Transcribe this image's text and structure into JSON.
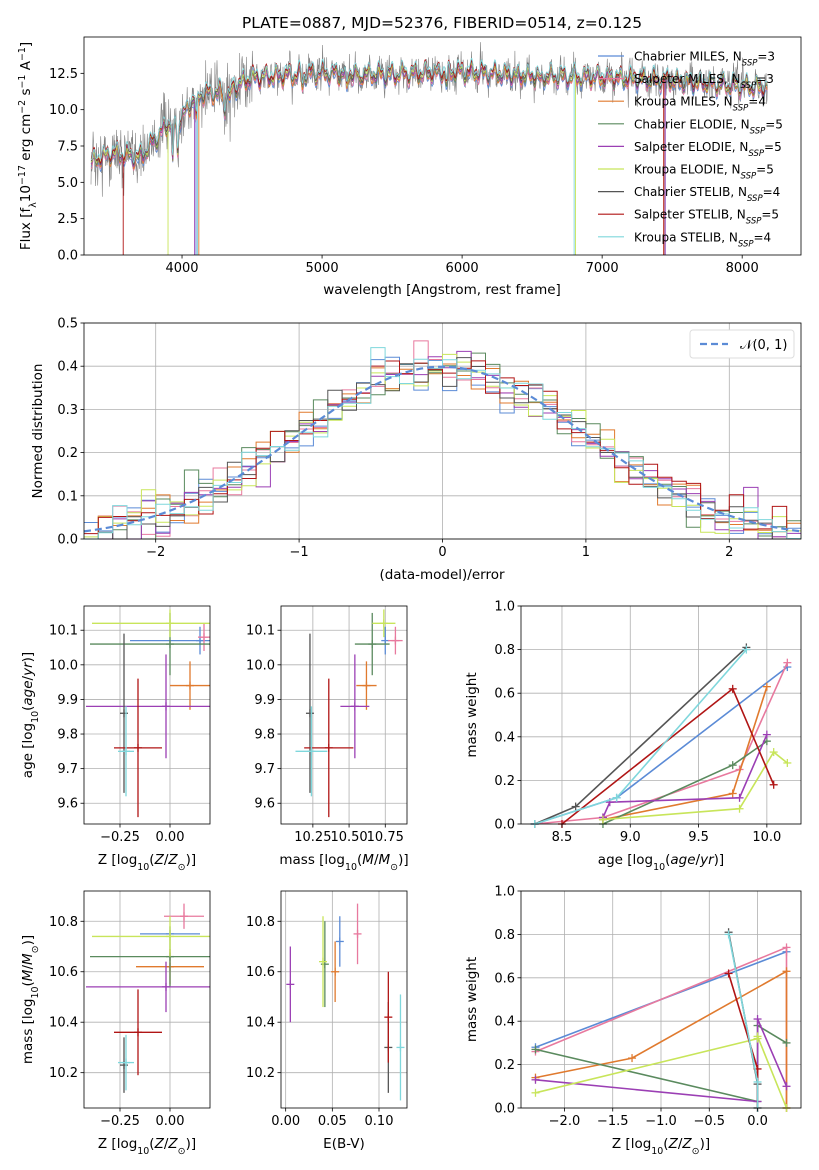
{
  "colors": {
    "Chabrier MILES": "#5b8bd6",
    "Salpeter MILES": "#e8799e",
    "Kroupa MILES": "#e07a2e",
    "Chabrier ELODIE": "#5a8a5e",
    "Salpeter ELODIE": "#9b3fb4",
    "Kroupa ELODIE": "#c8e55a",
    "Chabrier STELIB": "#555555",
    "Salpeter STELIB": "#b01515",
    "Kroupa STELIB": "#7fd7dc",
    "data": "#808080",
    "normal": "#5b8bd6"
  },
  "chart_data": [
    {
      "type": "line",
      "title": "PLATE=0887, MJD=52376, FIBERID=0514, z=0.125",
      "xlabel": "wavelength [Angstrom, rest frame]",
      "ylabel": "Flux [fλ10⁻¹⁷ erg cm⁻² s⁻¹ A⁻¹]",
      "xlim": [
        3300,
        8420
      ],
      "ylim": [
        0,
        15
      ],
      "xticks": [
        "4000",
        "5000",
        "6000",
        "7000",
        "8000"
      ],
      "yticks": [
        "0.0",
        "2.5",
        "5.0",
        "7.5",
        "10.0",
        "12.5"
      ],
      "legend_position": "right",
      "x_range_data": [
        3350,
        8180
      ],
      "series": [
        {
          "name": "Chabrier MILES, N_SSP=3"
        },
        {
          "name": "Salpeter MILES, N_SSP=3"
        },
        {
          "name": "Kroupa MILES, N_SSP=4"
        },
        {
          "name": "Chabrier ELODIE, N_SSP=5"
        },
        {
          "name": "Salpeter ELODIE, N_SSP=5"
        },
        {
          "name": "Kroupa ELODIE, N_SSP=5"
        },
        {
          "name": "Chabrier STELIB, N_SSP=4"
        },
        {
          "name": "Salpeter STELIB, N_SSP=5"
        },
        {
          "name": "Kroupa STELIB, N_SSP=4"
        }
      ],
      "model_shape": [
        [
          3350,
          6.4
        ],
        [
          3500,
          7.0
        ],
        [
          3700,
          6.7
        ],
        [
          3900,
          9.0
        ],
        [
          4000,
          9.5
        ],
        [
          4100,
          11.0
        ],
        [
          4300,
          11.2
        ],
        [
          4500,
          12.2
        ],
        [
          5000,
          12.5
        ],
        [
          5500,
          12.4
        ],
        [
          6000,
          12.6
        ],
        [
          6500,
          12.3
        ],
        [
          7000,
          12.2
        ],
        [
          7500,
          12.0
        ],
        [
          8000,
          11.6
        ],
        [
          8180,
          11.5
        ]
      ]
    },
    {
      "type": "histogram",
      "xlabel": "(data-model)/error",
      "ylabel": "Normed distribution",
      "xlim": [
        -2.5,
        2.5
      ],
      "ylim": [
        0,
        0.5
      ],
      "xticks": [
        "−2",
        "−1",
        "0",
        "1",
        "2"
      ],
      "yticks": [
        "0.0",
        "0.1",
        "0.2",
        "0.3",
        "0.4",
        "0.5"
      ],
      "bin_width": 0.1,
      "grid": true,
      "legend_position": "top-right",
      "reference": {
        "name": "N(0,1)",
        "mean": 0,
        "sigma": 1
      }
    },
    {
      "type": "scatter",
      "xlabel": "Z [log10(Z/Z⊙)]",
      "ylabel": "age  [log10(age/yr)]",
      "xlim": [
        -0.43,
        0.2
      ],
      "ylim": [
        9.54,
        10.17
      ],
      "xticks": [
        "−0.25",
        "0.00"
      ],
      "yticks": [
        "9.6",
        "9.7",
        "9.8",
        "9.9",
        "10.0",
        "10.1"
      ],
      "grid": true,
      "points": [
        {
          "name": "Chabrier MILES",
          "x": 0.15,
          "y": 10.07,
          "xerr": 0.35,
          "yerr": 0.04
        },
        {
          "name": "Salpeter MILES",
          "x": 0.17,
          "y": 10.08,
          "xerr": 0.03,
          "yerr": 0.04
        },
        {
          "name": "Kroupa MILES",
          "x": 0.1,
          "y": 9.94,
          "xerr": 0.1,
          "yerr": 0.07
        },
        {
          "name": "Chabrier ELODIE",
          "x": 0.0,
          "y": 10.06,
          "xerr": 0.4,
          "yerr": 0.09
        },
        {
          "name": "Salpeter ELODIE",
          "x": -0.02,
          "y": 9.88,
          "xerr": 0.4,
          "yerr": 0.15
        },
        {
          "name": "Kroupa ELODIE",
          "x": 0.0,
          "y": 10.12,
          "xerr": 0.39,
          "yerr": 0.04
        },
        {
          "name": "Chabrier STELIB",
          "x": -0.23,
          "y": 9.86,
          "xerr": 0.0,
          "yerr": 0.23
        },
        {
          "name": "Salpeter STELIB",
          "x": -0.16,
          "y": 9.76,
          "xerr": 0.12,
          "yerr": 0.2
        },
        {
          "name": "Kroupa STELIB",
          "x": -0.22,
          "y": 9.75,
          "xerr": 0.04,
          "yerr": 0.13
        }
      ]
    },
    {
      "type": "scatter",
      "xlabel": "mass [log10(M/M⊙)]",
      "xlim": [
        10.03,
        10.9
      ],
      "ylim": [
        9.54,
        10.17
      ],
      "xticks": [
        "10.25",
        "10.50",
        "10.75"
      ],
      "yticks": [
        "9.6",
        "9.7",
        "9.8",
        "9.9",
        "10.0",
        "10.1"
      ],
      "grid": true,
      "points": [
        {
          "name": "Chabrier MILES",
          "x": 10.75,
          "y": 10.07,
          "xerr": 0.0,
          "yerr": 0.04
        },
        {
          "name": "Salpeter MILES",
          "x": 10.82,
          "y": 10.07,
          "xerr": 0.05,
          "yerr": 0.04
        },
        {
          "name": "Kroupa MILES",
          "x": 10.62,
          "y": 9.94,
          "xerr": 0.07,
          "yerr": 0.07
        },
        {
          "name": "Chabrier ELODIE",
          "x": 10.66,
          "y": 10.06,
          "xerr": 0.12,
          "yerr": 0.09
        },
        {
          "name": "Salpeter ELODIE",
          "x": 10.54,
          "y": 9.88,
          "xerr": 0.1,
          "yerr": 0.15
        },
        {
          "name": "Kroupa ELODIE",
          "x": 10.74,
          "y": 10.12,
          "xerr": 0.08,
          "yerr": 0.04
        },
        {
          "name": "Chabrier STELIB",
          "x": 10.23,
          "y": 9.86,
          "xerr": 0.0,
          "yerr": 0.23
        },
        {
          "name": "Salpeter STELIB",
          "x": 10.36,
          "y": 9.76,
          "xerr": 0.17,
          "yerr": 0.2
        },
        {
          "name": "Kroupa STELIB",
          "x": 10.24,
          "y": 9.75,
          "xerr": 0.11,
          "yerr": 0.13
        }
      ]
    },
    {
      "type": "line",
      "xlabel": "age  [log10(age/yr)]",
      "ylabel": "mass weight",
      "xlim": [
        8.2,
        10.25
      ],
      "ylim": [
        0,
        1
      ],
      "xticks": [
        "8.5",
        "9.0",
        "9.5",
        "10.0"
      ],
      "yticks": [
        "0.0",
        "0.2",
        "0.4",
        "0.6",
        "0.8",
        "1.0"
      ],
      "grid": true,
      "series": [
        {
          "name": "Chabrier MILES",
          "x": [
            8.3,
            8.9,
            10.15
          ],
          "y": [
            0.0,
            0.12,
            0.72
          ]
        },
        {
          "name": "Salpeter MILES",
          "x": [
            8.3,
            8.8,
            9.8,
            10.15
          ],
          "y": [
            0.0,
            0.03,
            0.25,
            0.74
          ]
        },
        {
          "name": "Kroupa MILES",
          "x": [
            8.8,
            9.75,
            10.0
          ],
          "y": [
            0.02,
            0.14,
            0.63
          ]
        },
        {
          "name": "Chabrier ELODIE",
          "x": [
            8.8,
            9.75,
            10.0
          ],
          "y": [
            0.0,
            0.27,
            0.38
          ]
        },
        {
          "name": "Salpeter ELODIE",
          "x": [
            8.8,
            8.85,
            9.8,
            10.0
          ],
          "y": [
            0.03,
            0.1,
            0.12,
            0.41
          ]
        },
        {
          "name": "Kroupa ELODIE",
          "x": [
            8.8,
            9.8,
            10.05,
            10.15
          ],
          "y": [
            0.02,
            0.07,
            0.33,
            0.28
          ]
        },
        {
          "name": "Chabrier STELIB",
          "x": [
            8.3,
            8.6,
            9.85
          ],
          "y": [
            0.0,
            0.08,
            0.81
          ]
        },
        {
          "name": "Salpeter STELIB",
          "x": [
            8.5,
            9.75,
            10.05
          ],
          "y": [
            0.0,
            0.62,
            0.18
          ]
        },
        {
          "name": "Kroupa STELIB",
          "x": [
            8.3,
            8.9,
            9.85
          ],
          "y": [
            0.0,
            0.12,
            0.8
          ]
        }
      ]
    },
    {
      "type": "scatter",
      "xlabel": "Z [log10(Z/Z⊙)]",
      "ylabel": "mass [log10(M/M⊙)]",
      "xlim": [
        -0.43,
        0.2
      ],
      "ylim": [
        10.06,
        10.92
      ],
      "xticks": [
        "−0.25",
        "0.00"
      ],
      "yticks": [
        "10.2",
        "10.4",
        "10.6",
        "10.8"
      ],
      "grid": true,
      "points": [
        {
          "name": "Chabrier MILES",
          "x": 0.0,
          "y": 10.75,
          "xerr": 0.15,
          "yerr": 0.0
        },
        {
          "name": "Salpeter MILES",
          "x": 0.07,
          "y": 10.82,
          "xerr": 0.1,
          "yerr": 0.05
        },
        {
          "name": "Kroupa MILES",
          "x": 0.0,
          "y": 10.62,
          "xerr": 0.17,
          "yerr": 0.07
        },
        {
          "name": "Chabrier ELODIE",
          "x": 0.0,
          "y": 10.66,
          "xerr": 0.4,
          "yerr": 0.12
        },
        {
          "name": "Salpeter ELODIE",
          "x": -0.02,
          "y": 10.54,
          "xerr": 0.4,
          "yerr": 0.1
        },
        {
          "name": "Kroupa ELODIE",
          "x": 0.0,
          "y": 10.74,
          "xerr": 0.39,
          "yerr": 0.08
        },
        {
          "name": "Chabrier STELIB",
          "x": -0.23,
          "y": 10.23,
          "xerr": 0.0,
          "yerr": 0.11
        },
        {
          "name": "Salpeter STELIB",
          "x": -0.16,
          "y": 10.36,
          "xerr": 0.12,
          "yerr": 0.17
        },
        {
          "name": "Kroupa STELIB",
          "x": -0.22,
          "y": 10.24,
          "xerr": 0.04,
          "yerr": 0.11
        }
      ]
    },
    {
      "type": "errorbar",
      "xlabel": "E(B-V)",
      "xlim": [
        -0.005,
        0.13
      ],
      "ylim": [
        10.06,
        10.92
      ],
      "xticks": [
        "0.00",
        "0.05",
        "0.10"
      ],
      "yticks": [
        "10.2",
        "10.4",
        "10.6",
        "10.8"
      ],
      "grid": true,
      "points": [
        {
          "name": "Chabrier MILES",
          "x": 0.058,
          "y": 10.72,
          "yerr": 0.1
        },
        {
          "name": "Salpeter MILES",
          "x": 0.077,
          "y": 10.75,
          "yerr": 0.12
        },
        {
          "name": "Kroupa MILES",
          "x": 0.053,
          "y": 10.6,
          "yerr": 0.12
        },
        {
          "name": "Chabrier ELODIE",
          "x": 0.042,
          "y": 10.63,
          "yerr": 0.17
        },
        {
          "name": "Salpeter ELODIE",
          "x": 0.005,
          "y": 10.55,
          "yerr": 0.15
        },
        {
          "name": "Kroupa ELODIE",
          "x": 0.04,
          "y": 10.64,
          "yerr": 0.18
        },
        {
          "name": "Chabrier STELIB",
          "x": 0.11,
          "y": 10.3,
          "yerr": 0.18
        },
        {
          "name": "Salpeter STELIB",
          "x": 0.11,
          "y": 10.42,
          "yerr": 0.18
        },
        {
          "name": "Kroupa STELIB",
          "x": 0.123,
          "y": 10.3,
          "yerr": 0.21
        }
      ]
    },
    {
      "type": "line",
      "xlabel": "Z [log10(Z/Z⊙)]",
      "ylabel": "mass weight",
      "xlim": [
        -2.45,
        0.45
      ],
      "ylim": [
        0,
        1
      ],
      "xticks": [
        "−2.0",
        "−1.5",
        "−1.0",
        "−0.5",
        "0.0"
      ],
      "yticks": [
        "0.0",
        "0.2",
        "0.4",
        "0.6",
        "0.8",
        "1.0"
      ],
      "grid": true,
      "series": [
        {
          "name": "Chabrier MILES",
          "x": [
            -2.3,
            0.3
          ],
          "y": [
            0.28,
            0.72
          ]
        },
        {
          "name": "Salpeter MILES",
          "x": [
            -2.3,
            0.3,
            0.3
          ],
          "y": [
            0.26,
            0.74,
            0.0
          ]
        },
        {
          "name": "Kroupa MILES",
          "x": [
            -2.3,
            -1.3,
            0.3,
            0.3
          ],
          "y": [
            0.14,
            0.23,
            0.63,
            0.0
          ]
        },
        {
          "name": "Chabrier ELODIE",
          "x": [
            -2.3,
            0.0,
            0.0,
            0.3
          ],
          "y": [
            0.27,
            0.03,
            0.38,
            0.3
          ]
        },
        {
          "name": "Salpeter ELODIE",
          "x": [
            -2.3,
            0.0,
            0.0,
            0.3
          ],
          "y": [
            0.13,
            0.03,
            0.41,
            0.1
          ]
        },
        {
          "name": "Kroupa ELODIE",
          "x": [
            -2.3,
            0.0,
            0.0,
            0.3
          ],
          "y": [
            0.07,
            0.32,
            0.33,
            0.0
          ]
        },
        {
          "name": "Chabrier STELIB",
          "x": [
            -0.3,
            0.0,
            0.0
          ],
          "y": [
            0.81,
            0.11,
            0.0
          ]
        },
        {
          "name": "Salpeter STELIB",
          "x": [
            -0.3,
            0.0,
            0.0
          ],
          "y": [
            0.62,
            0.18,
            0.0
          ]
        },
        {
          "name": "Kroupa STELIB",
          "x": [
            -0.3,
            0.0,
            0.0
          ],
          "y": [
            0.8,
            0.12,
            0.0
          ]
        }
      ]
    }
  ]
}
